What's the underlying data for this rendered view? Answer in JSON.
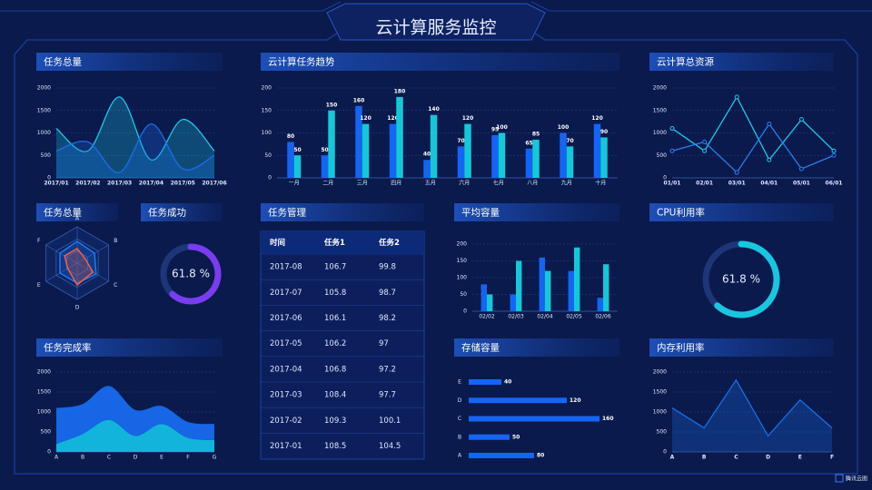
{
  "header": {
    "title": "云计算服务监控"
  },
  "footer": {
    "brand": "腾讯云图"
  },
  "chart_data": [
    {
      "type": "line",
      "title": "任务总量",
      "smooth": true,
      "area": true,
      "grid": true,
      "x": [
        "2017/01",
        "2017/02",
        "2017/03",
        "2017/04",
        "2017/05",
        "2017/06"
      ],
      "ylim": [
        0,
        2000
      ],
      "yticks": [
        0,
        500,
        1000,
        1500,
        2000
      ],
      "series": [
        {
          "color": "#1ec8e6",
          "values": [
            1100,
            600,
            1800,
            400,
            1300,
            600
          ]
        },
        {
          "color": "#1a6fe8",
          "values": [
            600,
            800,
            120,
            1200,
            200,
            500
          ]
        }
      ]
    },
    {
      "type": "bar",
      "title": "云计算任务趋势",
      "grid": true,
      "data_labels": true,
      "categories": [
        "一月",
        "二月",
        "三月",
        "四月",
        "五月",
        "六月",
        "七月",
        "八月",
        "九月",
        "十月"
      ],
      "ylim": [
        0,
        200
      ],
      "yticks": [
        0,
        50,
        100,
        150,
        200
      ],
      "series": [
        {
          "color": "#1565f5",
          "values": [
            80,
            50,
            160,
            120,
            40,
            70,
            95,
            65,
            100,
            120
          ]
        },
        {
          "color": "#14c8d8",
          "values": [
            50,
            150,
            120,
            180,
            140,
            120,
            100,
            85,
            70,
            90
          ]
        }
      ]
    },
    {
      "type": "line",
      "title": "云计算总资源",
      "smooth": false,
      "area": false,
      "markers": true,
      "grid": true,
      "x": [
        "01/01",
        "02/01",
        "03/01",
        "04/01",
        "05/01",
        "06/01"
      ],
      "ylim": [
        0,
        2000
      ],
      "yticks": [
        0,
        500,
        1000,
        1500,
        2000
      ],
      "series": [
        {
          "color": "#1ec8e6",
          "values": [
            1100,
            600,
            1800,
            400,
            1300,
            600
          ]
        },
        {
          "color": "#2d7ff0",
          "values": [
            600,
            800,
            120,
            1200,
            200,
            500
          ]
        }
      ]
    },
    {
      "type": "radar",
      "title": "任务总量",
      "indicators": [
        "A",
        "B",
        "C",
        "D",
        "E",
        "F"
      ],
      "rlim": [
        0,
        100
      ],
      "series": [
        {
          "color": "#1e7af5",
          "values": [
            60,
            55,
            60,
            55,
            55,
            55
          ]
        },
        {
          "color": "#f0604a",
          "values": [
            40,
            25,
            50,
            60,
            30,
            40
          ]
        }
      ]
    },
    {
      "type": "gauge",
      "title": "任务成功",
      "value": 61.8,
      "value_label": "61.8 %",
      "ylim": [
        0,
        100
      ],
      "color": "#7a3cf0"
    },
    {
      "type": "bar",
      "title": "平均容量",
      "grid": true,
      "data_labels": false,
      "categories": [
        "02/02",
        "02/03",
        "02/04",
        "02/05",
        "02/06"
      ],
      "ylim": [
        0,
        200
      ],
      "yticks": [
        0,
        50,
        100,
        150,
        200
      ],
      "series": [
        {
          "color": "#1565f5",
          "values": [
            80,
            50,
            160,
            120,
            40
          ]
        },
        {
          "color": "#14c8d8",
          "values": [
            50,
            150,
            120,
            190,
            140
          ]
        }
      ]
    },
    {
      "type": "gauge",
      "title": "CPU利用率",
      "value": 61.8,
      "value_label": "61.8 %",
      "ylim": [
        0,
        100
      ],
      "color": "#17c7df"
    },
    {
      "type": "area",
      "title": "任务完成率",
      "grid": true,
      "categories": [
        "A",
        "B",
        "C",
        "D",
        "E",
        "F",
        "G"
      ],
      "ylim": [
        0,
        2000
      ],
      "yticks": [
        0,
        500,
        1000,
        1500,
        2000
      ],
      "series": [
        {
          "color": "#12b4dc",
          "values": [
            200,
            450,
            800,
            400,
            700,
            350,
            300
          ]
        },
        {
          "color": "#1766e6",
          "values": [
            900,
            750,
            850,
            650,
            450,
            400,
            400
          ]
        }
      ]
    },
    {
      "type": "barh",
      "title": "存储容量",
      "categories": [
        "A",
        "B",
        "C",
        "D",
        "E"
      ],
      "values": [
        80,
        50,
        160,
        120,
        40
      ],
      "color": "#1565f5"
    },
    {
      "type": "line",
      "title": "内存利用率",
      "smooth": false,
      "area": true,
      "grid": true,
      "x": [
        "A",
        "B",
        "C",
        "D",
        "E",
        "F"
      ],
      "ylim": [
        0,
        2000
      ],
      "yticks": [
        0,
        500,
        1000,
        1500,
        2000
      ],
      "series": [
        {
          "color": "#1a6fe8",
          "values": [
            1100,
            600,
            1800,
            400,
            1300,
            600
          ]
        }
      ]
    }
  ],
  "table": {
    "title": "任务管理",
    "columns": [
      "时间",
      "任务1",
      "任务2"
    ],
    "rows": [
      [
        "2017-08",
        "106.7",
        "99.8"
      ],
      [
        "2017-07",
        "105.8",
        "98.7"
      ],
      [
        "2017-06",
        "106.1",
        "98.2"
      ],
      [
        "2017-05",
        "106.2",
        "97"
      ],
      [
        "2017-04",
        "106.8",
        "97.2"
      ],
      [
        "2017-03",
        "108.4",
        "97.7"
      ],
      [
        "2017-02",
        "109.3",
        "100.1"
      ],
      [
        "2017-01",
        "108.5",
        "104.5"
      ]
    ]
  }
}
